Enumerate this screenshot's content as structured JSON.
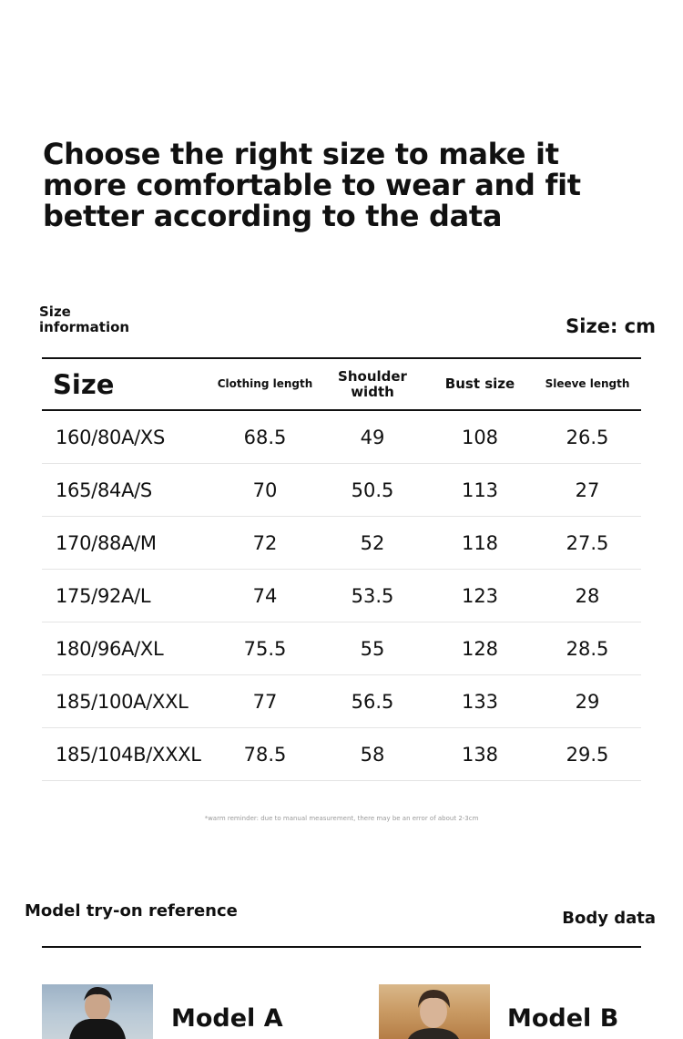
{
  "headline": "Choose the right size to make it more comfortable to wear and fit better according to the data",
  "size_info_label": "Size information",
  "unit_label": "Size: cm",
  "table": {
    "headers": {
      "size": "Size",
      "clothing_length": "Clothing length",
      "shoulder_width": "Shoulder width",
      "bust_size": "Bust size",
      "sleeve_length": "Sleeve length"
    },
    "rows": [
      {
        "size": "160/80A/XS",
        "clothing_length": "68.5",
        "shoulder_width": "49",
        "bust_size": "108",
        "sleeve_length": "26.5"
      },
      {
        "size": "165/84A/S",
        "clothing_length": "70",
        "shoulder_width": "50.5",
        "bust_size": "113",
        "sleeve_length": "27"
      },
      {
        "size": "170/88A/M",
        "clothing_length": "72",
        "shoulder_width": "52",
        "bust_size": "118",
        "sleeve_length": "27.5"
      },
      {
        "size": "175/92A/L",
        "clothing_length": "74",
        "shoulder_width": "53.5",
        "bust_size": "123",
        "sleeve_length": "28"
      },
      {
        "size": "180/96A/XL",
        "clothing_length": "75.5",
        "shoulder_width": "55",
        "bust_size": "128",
        "sleeve_length": "28.5"
      },
      {
        "size": "185/100A/XXL",
        "clothing_length": "77",
        "shoulder_width": "56.5",
        "bust_size": "133",
        "sleeve_length": "29"
      },
      {
        "size": "185/104B/XXXL",
        "clothing_length": "78.5",
        "shoulder_width": "58",
        "bust_size": "138",
        "sleeve_length": "29.5"
      }
    ]
  },
  "reminder": "*warm reminder: due to manual measurement, there may be an error of about 2-3cm",
  "model_section": {
    "title": "Model try-on reference",
    "body_data_label": "Body data",
    "models": [
      {
        "name": "Model A"
      },
      {
        "name": "Model B"
      }
    ]
  }
}
